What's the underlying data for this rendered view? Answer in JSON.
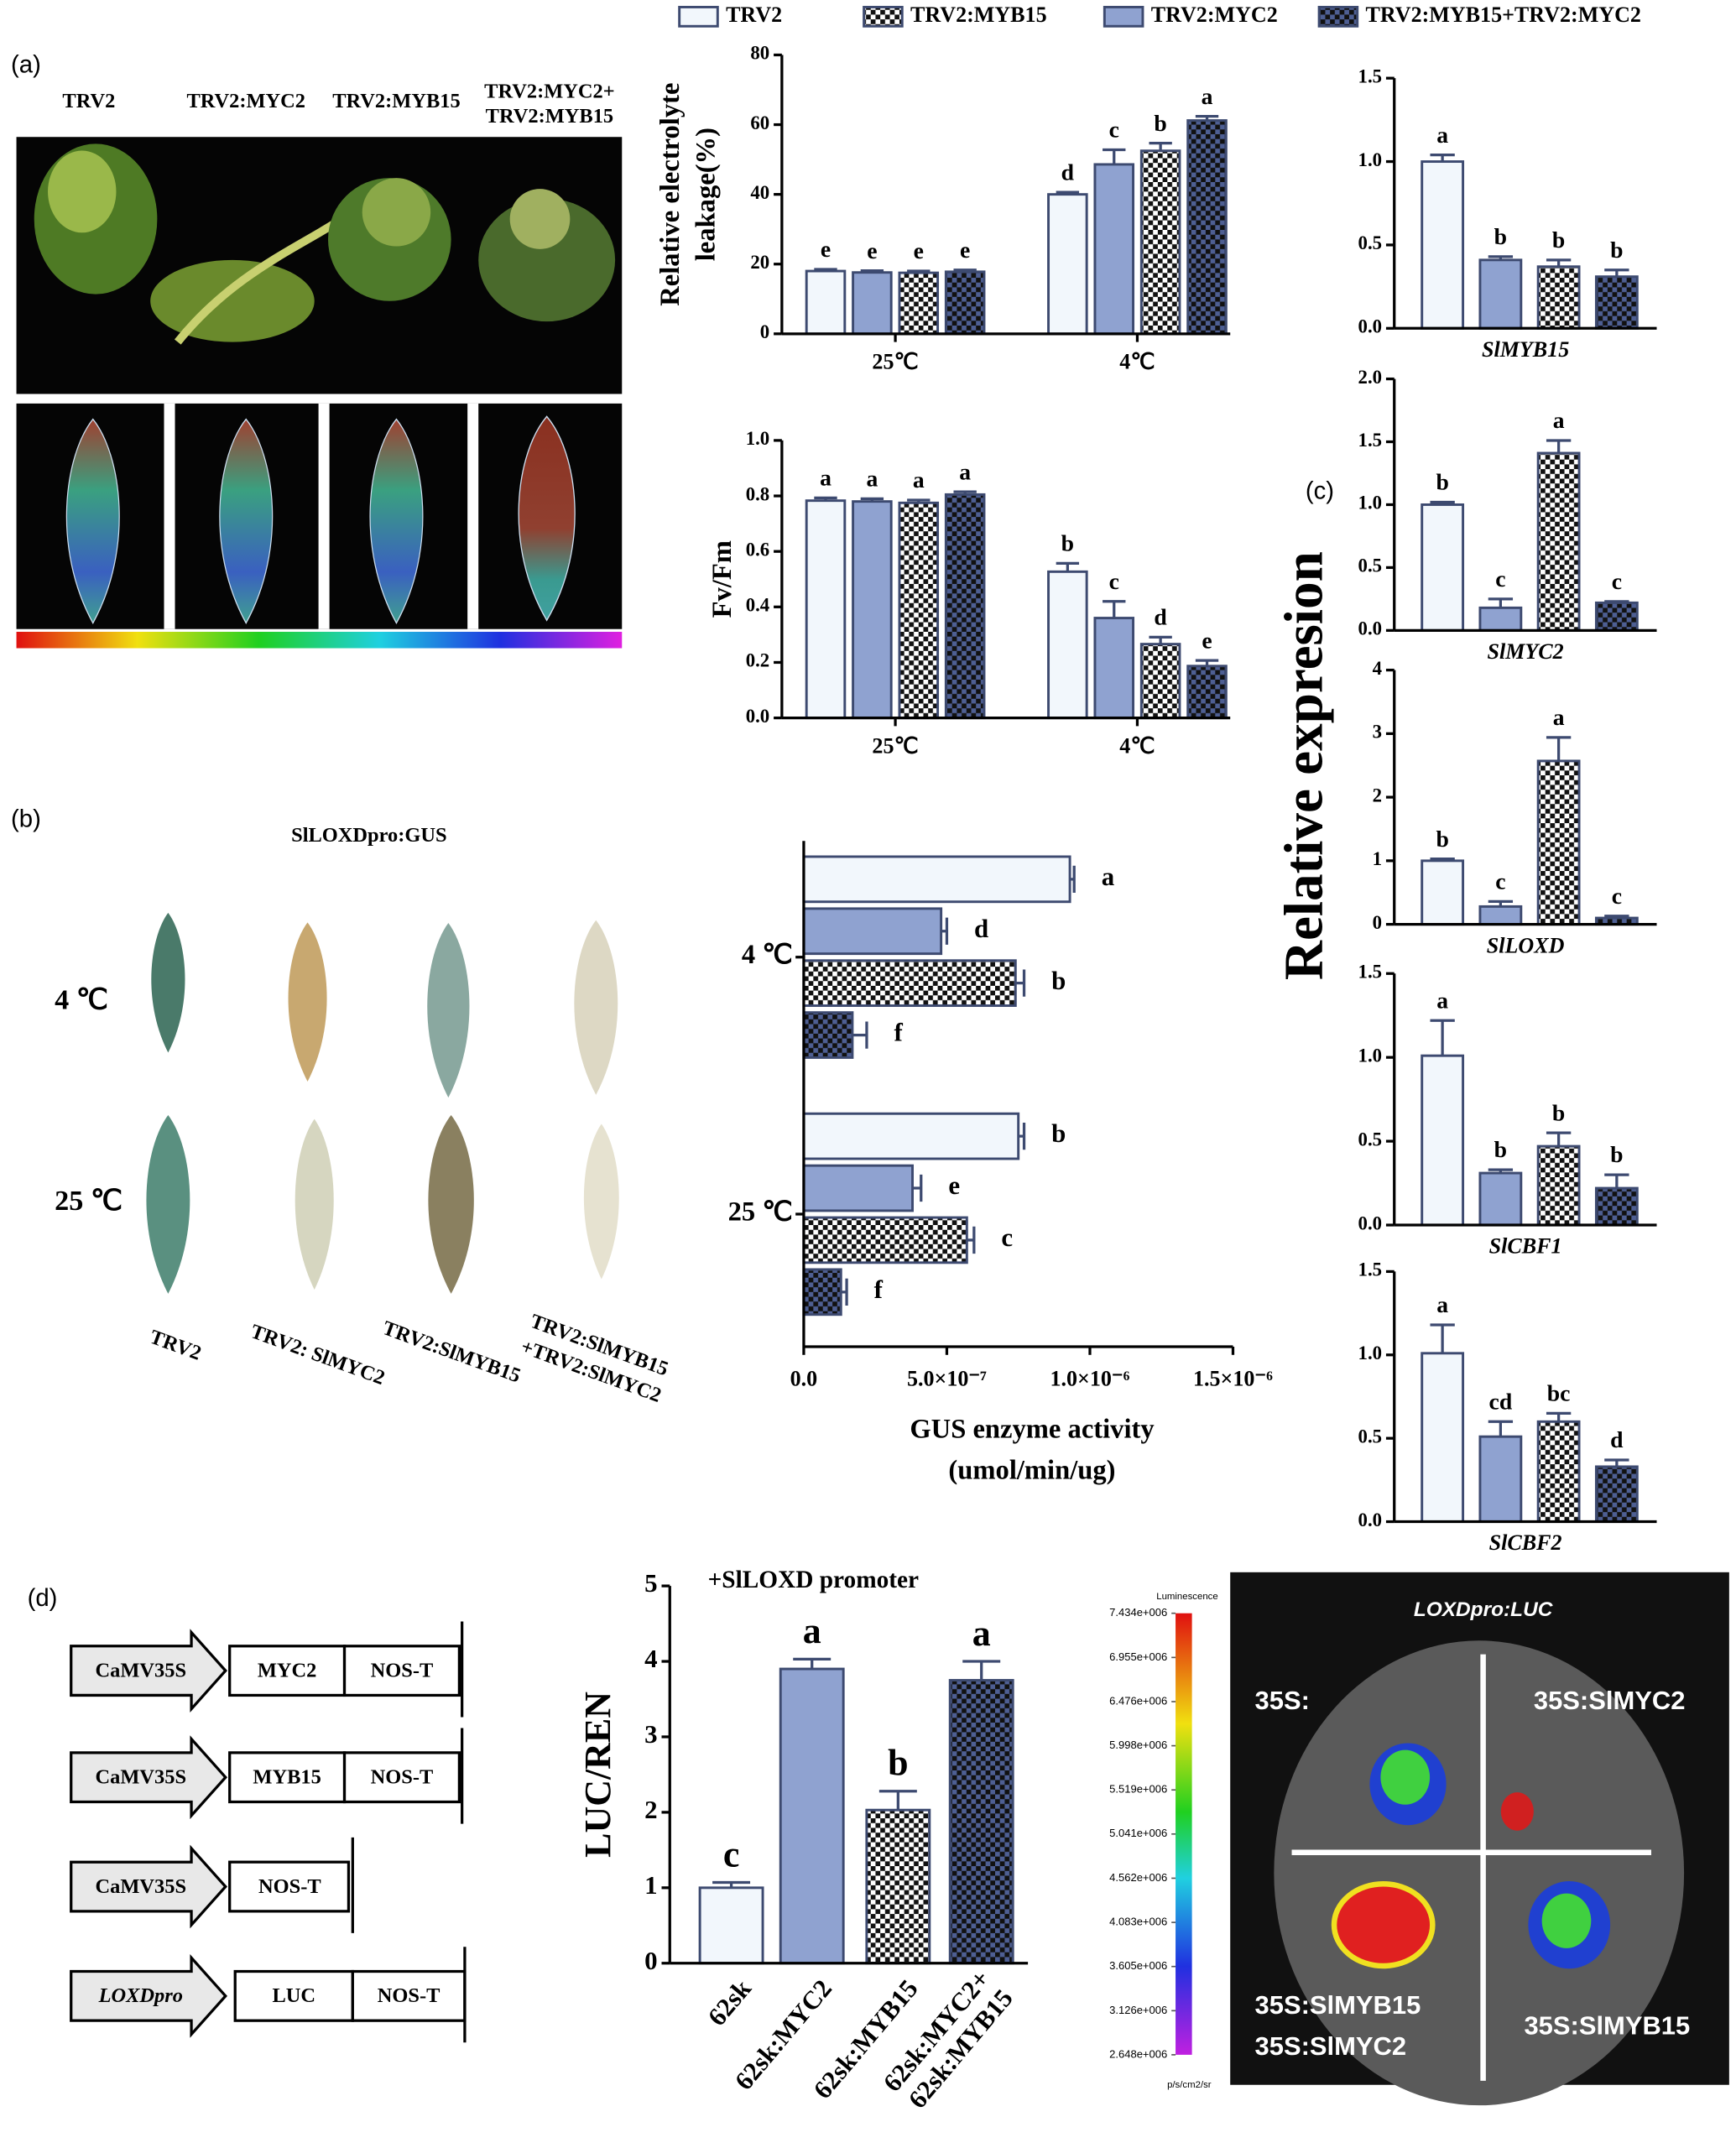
{
  "panel_labels": [
    "(a)",
    "(b)",
    "(c)",
    "(d)"
  ],
  "photos_a": {
    "labels": [
      "TRV2",
      "TRV2:MYC2",
      "TRV2:MYB15",
      [
        "TRV2:MYC2+",
        "TRV2:MYB15"
      ]
    ]
  },
  "photos_b": {
    "title": "SlLOXDpro:GUS",
    "rows": [
      "4 ℃",
      "25 ℃"
    ],
    "columns": [
      "TRV2",
      "TRV2: SlMYC2",
      "TRV2:SlMYB15",
      [
        "TRV2:SlMYB15",
        "+TRV2:SlMYC2"
      ]
    ]
  },
  "panel_c": {
    "ylabel": "Relative expresion"
  },
  "constructs": [
    [
      "CaMV35S",
      "MYC2",
      "NOS-T"
    ],
    [
      "CaMV35S",
      "MYB15",
      "NOS-T"
    ],
    [
      "CaMV35S",
      "NOS-T"
    ],
    [
      "LOXDpro",
      "LUC",
      "NOS-T"
    ]
  ],
  "luc_image": {
    "title": "LOXDpro:LUC",
    "quadrants": [
      "35S:",
      "35S:SlMYC2",
      [
        "35S:SlMYB15",
        "35S:SlMYC2"
      ],
      "35S:SlMYB15"
    ]
  },
  "chart_data": [
    {
      "type": "bar",
      "ylabel": [
        "Relative electrolyte",
        "leakage(%)"
      ],
      "categories": [
        "25℃",
        "4℃"
      ],
      "ylim": [
        0,
        80
      ],
      "yticks": [
        0,
        20,
        40,
        60,
        80
      ],
      "series": [
        {
          "name": "TRV2",
          "color": "#f2f7fc",
          "values": [
            18,
            40
          ],
          "errors": [
            0.5,
            0.6
          ],
          "letters": [
            "e",
            "d"
          ]
        },
        {
          "name": "TRV2:MYC2",
          "color": "#8fa2d0",
          "values": [
            17.6,
            48.6
          ],
          "errors": [
            0.5,
            4.2
          ],
          "letters": [
            "e",
            "c"
          ]
        },
        {
          "name": "TRV2:MYB15",
          "color": "#ffffff",
          "hatch": "checker",
          "values": [
            17.5,
            52.5
          ],
          "errors": [
            0.5,
            2.2
          ],
          "letters": [
            "e",
            "b"
          ]
        },
        {
          "name": "TRV2:MYB15+TRV2:MYC2",
          "color": "#4e5f93",
          "hatch": "checker",
          "values": [
            17.8,
            61.2
          ],
          "errors": [
            0.5,
            1.2
          ],
          "letters": [
            "e",
            "a"
          ]
        }
      ]
    },
    {
      "type": "bar",
      "ylabel": [
        "Fv/Fm"
      ],
      "categories": [
        "25℃",
        "4℃"
      ],
      "ylim": [
        0,
        1
      ],
      "yticks": [
        {
          "value": 0,
          "label": "0.0"
        },
        0.2,
        0.4,
        0.6,
        0.8,
        {
          "value": 1,
          "label": "1.0"
        }
      ],
      "series": [
        {
          "color": "#f2f7fc",
          "values": [
            0.783,
            0.527
          ],
          "errors": [
            0.01,
            0.03
          ],
          "letters": [
            "a",
            "b"
          ]
        },
        {
          "color": "#8fa2d0",
          "values": [
            0.78,
            0.36
          ],
          "errors": [
            0.01,
            0.06
          ],
          "letters": [
            "a",
            "c"
          ]
        },
        {
          "color": "#ffffff",
          "hatch": "checker",
          "values": [
            0.775,
            0.266
          ],
          "errors": [
            0.01,
            0.025
          ],
          "letters": [
            "a",
            "d"
          ]
        },
        {
          "color": "#4e5f93",
          "hatch": "checker",
          "values": [
            0.805,
            0.187
          ],
          "errors": [
            0.01,
            0.02
          ],
          "letters": [
            "a",
            "e"
          ]
        }
      ]
    },
    {
      "type": "barh",
      "categories": [
        "4 ℃",
        "25 ℃"
      ],
      "xlabel": [
        "GUS enzyme activity",
        "(umol/min/ug)"
      ],
      "xlim": [
        0,
        1.5e-06
      ],
      "xticks": [
        {
          "value": 0,
          "label": "0.0"
        },
        {
          "value": 5e-07,
          "label": "5.0×10⁻⁷"
        },
        {
          "value": 1e-06,
          "label": "1.0×10⁻⁶"
        },
        {
          "value": 1.5e-06,
          "label": "1.5×10⁻⁶"
        }
      ],
      "series": [
        {
          "color": "#f2f7fc",
          "values": [
            9.3e-07,
            7.5e-07
          ],
          "errors": [
            1.5e-08,
            2e-08
          ],
          "letters": [
            "a",
            "b"
          ]
        },
        {
          "color": "#8fa2d0",
          "values": [
            4.8e-07,
            3.8e-07
          ],
          "errors": [
            2e-08,
            3e-08
          ],
          "letters": [
            "d",
            "e"
          ]
        },
        {
          "color": "#ffffff",
          "hatch": "checker",
          "values": [
            7.4e-07,
            5.7e-07
          ],
          "errors": [
            3e-08,
            2.5e-08
          ],
          "letters": [
            "b",
            "c"
          ]
        },
        {
          "color": "#4e5f93",
          "hatch": "checker",
          "values": [
            1.7e-07,
            1.3e-07
          ],
          "errors": [
            5e-08,
            2e-08
          ],
          "letters": [
            "f",
            "f"
          ]
        }
      ]
    },
    {
      "type": "bar",
      "xlabel": "SlMYB15",
      "ylim": [
        0,
        1.5
      ],
      "yticks": [
        {
          "value": 0,
          "label": "0.0"
        },
        0.5,
        {
          "value": 1,
          "label": "1.0"
        },
        1.5
      ],
      "series": [
        {
          "color": "#f2f7fc",
          "values": [
            1.0
          ],
          "errors": [
            0.04
          ],
          "letters": [
            "a"
          ]
        },
        {
          "color": "#8fa2d0",
          "values": [
            0.41
          ],
          "errors": [
            0.02
          ],
          "letters": [
            "b"
          ]
        },
        {
          "color": "#ffffff",
          "hatch": "checker",
          "values": [
            0.37
          ],
          "errors": [
            0.04
          ],
          "letters": [
            "b"
          ]
        },
        {
          "color": "#4e5f93",
          "hatch": "checker",
          "values": [
            0.31
          ],
          "errors": [
            0.04
          ],
          "letters": [
            "b"
          ]
        }
      ]
    },
    {
      "type": "bar",
      "xlabel": "SlMYC2",
      "ylim": [
        0,
        2
      ],
      "yticks": [
        {
          "value": 0,
          "label": "0.0"
        },
        0.5,
        {
          "value": 1,
          "label": "1.0"
        },
        1.5,
        {
          "value": 2,
          "label": "2.0"
        }
      ],
      "series": [
        {
          "color": "#f2f7fc",
          "values": [
            1.0
          ],
          "errors": [
            0.02
          ],
          "letters": [
            "b"
          ]
        },
        {
          "color": "#8fa2d0",
          "values": [
            0.18
          ],
          "errors": [
            0.07
          ],
          "letters": [
            "c"
          ]
        },
        {
          "color": "#ffffff",
          "hatch": "checker",
          "values": [
            1.41
          ],
          "errors": [
            0.1
          ],
          "letters": [
            "a"
          ]
        },
        {
          "color": "#4e5f93",
          "hatch": "checker",
          "values": [
            0.22
          ],
          "errors": [
            0.01
          ],
          "letters": [
            "c"
          ]
        }
      ]
    },
    {
      "type": "bar",
      "xlabel": "SlLOXD",
      "ylim": [
        0,
        4
      ],
      "yticks": [
        0,
        1,
        2,
        3,
        4
      ],
      "series": [
        {
          "color": "#f2f7fc",
          "values": [
            1.0
          ],
          "errors": [
            0.03
          ],
          "letters": [
            "b"
          ]
        },
        {
          "color": "#8fa2d0",
          "values": [
            0.28
          ],
          "errors": [
            0.08
          ],
          "letters": [
            "c"
          ]
        },
        {
          "color": "#ffffff",
          "hatch": "checker",
          "values": [
            2.57
          ],
          "errors": [
            0.37
          ],
          "letters": [
            "a"
          ]
        },
        {
          "color": "#4e5f93",
          "hatch": "checker",
          "values": [
            0.1
          ],
          "errors": [
            0.03
          ],
          "letters": [
            "c"
          ]
        }
      ]
    },
    {
      "type": "bar",
      "xlabel": "SlCBF1",
      "ylim": [
        0,
        1.5
      ],
      "yticks": [
        {
          "value": 0,
          "label": "0.0"
        },
        0.5,
        {
          "value": 1,
          "label": "1.0"
        },
        1.5
      ],
      "series": [
        {
          "color": "#f2f7fc",
          "values": [
            1.01
          ],
          "errors": [
            0.21
          ],
          "letters": [
            "a"
          ]
        },
        {
          "color": "#8fa2d0",
          "values": [
            0.31
          ],
          "errors": [
            0.02
          ],
          "letters": [
            "b"
          ]
        },
        {
          "color": "#ffffff",
          "hatch": "checker",
          "values": [
            0.47
          ],
          "errors": [
            0.08
          ],
          "letters": [
            "b"
          ]
        },
        {
          "color": "#4e5f93",
          "hatch": "checker",
          "values": [
            0.22
          ],
          "errors": [
            0.08
          ],
          "letters": [
            "b"
          ]
        }
      ]
    },
    {
      "type": "bar",
      "xlabel": "SlCBF2",
      "ylim": [
        0,
        1.5
      ],
      "yticks": [
        {
          "value": 0,
          "label": "0.0"
        },
        0.5,
        {
          "value": 1,
          "label": "1.0"
        },
        1.5
      ],
      "series": [
        {
          "color": "#f2f7fc",
          "values": [
            1.01
          ],
          "errors": [
            0.17
          ],
          "letters": [
            "a"
          ]
        },
        {
          "color": "#8fa2d0",
          "values": [
            0.51
          ],
          "errors": [
            0.09
          ],
          "letters": [
            "cd"
          ]
        },
        {
          "color": "#ffffff",
          "hatch": "checker",
          "values": [
            0.6
          ],
          "errors": [
            0.05
          ],
          "letters": [
            "bc"
          ]
        },
        {
          "color": "#4e5f93",
          "hatch": "checker",
          "values": [
            0.33
          ],
          "errors": [
            0.04
          ],
          "letters": [
            "d"
          ]
        }
      ]
    },
    {
      "type": "bar",
      "title": "+SlLOXD promoter",
      "ylabel": [
        "LUC/REN"
      ],
      "categories": [
        "62sk",
        "62sk:MYC2",
        "62sk:MYB15",
        [
          "62sk:MYC2+",
          "62sk:MYB15"
        ]
      ],
      "ylim": [
        0,
        5
      ],
      "yticks": [
        0,
        1,
        2,
        3,
        4,
        5
      ],
      "series": [
        {
          "colors": [
            "#f2f7fc",
            "#8fa2d0",
            "#ffffff",
            "#4e5f93"
          ],
          "fills": [
            "solid",
            "solid",
            "checker",
            "checker"
          ],
          "values": [
            1.0,
            3.9,
            2.03,
            3.75
          ],
          "errors": [
            0.07,
            0.13,
            0.25,
            0.25
          ],
          "letters": [
            "c",
            "a",
            "b",
            "a"
          ]
        }
      ]
    },
    {
      "type": "colorbar",
      "title": "Luminescence",
      "unit": "p/s/cm2/sr",
      "ylim": [
        2648000,
        7434000
      ],
      "yticks": [
        {
          "value": 7434000,
          "label": "7.434e+006"
        },
        {
          "value": 6955000,
          "label": "6.955e+006"
        },
        {
          "value": 6476000,
          "label": "6.476e+006"
        },
        {
          "value": 5998000,
          "label": "5.998e+006"
        },
        {
          "value": 5519000,
          "label": "5.519e+006"
        },
        {
          "value": 5041000,
          "label": "5.041e+006"
        },
        {
          "value": 4562000,
          "label": "4.562e+006"
        },
        {
          "value": 4083000,
          "label": "4.083e+006"
        },
        {
          "value": 3605000,
          "label": "3.605e+006"
        },
        {
          "value": 3126000,
          "label": "3.126e+006"
        },
        {
          "value": 2648000,
          "label": "2.648e+006"
        }
      ]
    }
  ]
}
